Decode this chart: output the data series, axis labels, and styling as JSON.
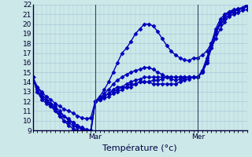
{
  "background_color": "#cce8e8",
  "grid_color": "#a8c8d8",
  "line_color": "#0000bb",
  "marker": "D",
  "markersize": 2.5,
  "linewidth": 1.0,
  "ylim": [
    9,
    22
  ],
  "yticks": [
    9,
    10,
    11,
    12,
    13,
    14,
    15,
    16,
    17,
    18,
    19,
    20,
    21,
    22
  ],
  "xlabel": "Température (°c)",
  "xlabel_fontsize": 8,
  "tick_fontsize": 6.5,
  "xlim": [
    0,
    48
  ],
  "day_ticks": [
    14,
    37
  ],
  "day_labels": [
    "Mar",
    "Mer"
  ],
  "series": [
    {
      "x": [
        0,
        1,
        2,
        3,
        4,
        5,
        6,
        7,
        8,
        9,
        10,
        11,
        12,
        13,
        14,
        15,
        16,
        17,
        18,
        19,
        20,
        21,
        22,
        23,
        24,
        25,
        26,
        27,
        28,
        29,
        30,
        31,
        32,
        33,
        34,
        35,
        36,
        37,
        38,
        39,
        40,
        41,
        42,
        43,
        44,
        45,
        46,
        47,
        48
      ],
      "y": [
        14.5,
        13.5,
        13.0,
        12.5,
        12.2,
        11.8,
        11.5,
        11.2,
        11.0,
        10.8,
        10.5,
        10.3,
        10.2,
        10.3,
        12.0,
        12.5,
        13.2,
        14.0,
        15.0,
        16.0,
        17.0,
        17.5,
        18.2,
        19.0,
        19.5,
        20.0,
        20.0,
        19.8,
        19.2,
        18.5,
        17.8,
        17.2,
        16.8,
        16.5,
        16.3,
        16.2,
        16.5,
        16.5,
        16.8,
        17.2,
        18.0,
        19.0,
        20.0,
        20.5,
        21.0,
        21.3,
        21.5,
        21.7,
        22.0
      ]
    },
    {
      "x": [
        0,
        1,
        2,
        3,
        4,
        5,
        6,
        7,
        8,
        9,
        10,
        11,
        12,
        13,
        14,
        15,
        16,
        17,
        18,
        19,
        20,
        21,
        22,
        23,
        24,
        25,
        26,
        27,
        28,
        29,
        30,
        31,
        32,
        33,
        34,
        35,
        36,
        37,
        38,
        39,
        40,
        41,
        42,
        43,
        44,
        45,
        46,
        47,
        48
      ],
      "y": [
        14.5,
        13.0,
        12.5,
        12.0,
        11.8,
        11.5,
        11.0,
        10.5,
        10.2,
        9.8,
        9.5,
        9.3,
        9.1,
        9.0,
        12.0,
        12.3,
        12.8,
        13.2,
        13.8,
        14.2,
        14.5,
        14.8,
        15.0,
        15.2,
        15.3,
        15.5,
        15.5,
        15.3,
        15.0,
        14.8,
        14.5,
        14.3,
        14.2,
        14.3,
        14.4,
        14.5,
        14.5,
        14.5,
        15.0,
        16.0,
        17.5,
        18.5,
        19.5,
        20.2,
        20.8,
        21.0,
        21.2,
        21.4,
        21.5
      ]
    },
    {
      "x": [
        0,
        1,
        2,
        3,
        4,
        5,
        6,
        7,
        8,
        9,
        10,
        11,
        12,
        13,
        14,
        15,
        16,
        17,
        18,
        19,
        20,
        21,
        22,
        23,
        24,
        25,
        26,
        27,
        28,
        29,
        30,
        31,
        32,
        33,
        34,
        35,
        36,
        37,
        38,
        39,
        40,
        41,
        42,
        43,
        44,
        45,
        46,
        47,
        48
      ],
      "y": [
        14.5,
        13.0,
        12.2,
        11.8,
        11.5,
        11.0,
        10.5,
        10.0,
        9.8,
        9.5,
        9.3,
        9.1,
        9.0,
        9.0,
        12.0,
        12.2,
        12.5,
        12.8,
        13.0,
        13.2,
        13.5,
        13.5,
        13.8,
        13.8,
        14.0,
        14.0,
        14.0,
        13.8,
        13.8,
        13.8,
        13.8,
        13.8,
        13.8,
        14.0,
        14.2,
        14.3,
        14.5,
        14.5,
        15.0,
        16.0,
        17.5,
        19.0,
        20.0,
        20.5,
        21.0,
        21.2,
        21.5,
        21.7,
        22.0
      ]
    },
    {
      "x": [
        0,
        1,
        2,
        3,
        4,
        5,
        6,
        7,
        8,
        9,
        10,
        11,
        12,
        13,
        14,
        15,
        16,
        17,
        18,
        19,
        20,
        21,
        22,
        23,
        24,
        25,
        26,
        27,
        28,
        29,
        30,
        31,
        32,
        33,
        34,
        35,
        36,
        37,
        38,
        39,
        40,
        41,
        42,
        43,
        44,
        45,
        46,
        47,
        48
      ],
      "y": [
        14.5,
        13.2,
        12.5,
        12.0,
        11.5,
        11.2,
        10.8,
        10.5,
        10.0,
        9.8,
        9.5,
        9.2,
        9.0,
        8.9,
        12.0,
        12.2,
        12.5,
        12.8,
        13.2,
        13.5,
        13.5,
        13.8,
        14.0,
        14.2,
        14.3,
        14.5,
        14.5,
        14.5,
        14.5,
        14.5,
        14.5,
        14.5,
        14.5,
        14.5,
        14.5,
        14.5,
        14.5,
        14.5,
        15.2,
        16.2,
        17.8,
        19.2,
        20.2,
        20.8,
        21.2,
        21.4,
        21.5,
        21.6,
        21.8
      ]
    },
    {
      "x": [
        0,
        1,
        2,
        3,
        4,
        5,
        6,
        7,
        8,
        9,
        10,
        11,
        12,
        13,
        14,
        15,
        16,
        17,
        18,
        19,
        20,
        21,
        22,
        23,
        24,
        25,
        26,
        27,
        28,
        29,
        30,
        31,
        32,
        33,
        34,
        35,
        36,
        37,
        38,
        39,
        40,
        41,
        42,
        43,
        44,
        45,
        46,
        47,
        48
      ],
      "y": [
        14.5,
        13.5,
        12.8,
        12.2,
        11.8,
        11.2,
        10.5,
        10.0,
        9.5,
        9.2,
        9.0,
        8.8,
        8.8,
        8.7,
        12.0,
        12.2,
        12.3,
        12.5,
        12.8,
        13.0,
        13.2,
        13.5,
        13.5,
        13.8,
        14.0,
        14.0,
        14.0,
        14.2,
        14.2,
        14.3,
        14.5,
        14.5,
        14.5,
        14.5,
        14.5,
        14.5,
        14.5,
        14.5,
        15.2,
        16.5,
        18.0,
        19.5,
        20.5,
        21.0,
        21.3,
        21.5,
        21.6,
        21.7,
        21.9
      ]
    }
  ]
}
